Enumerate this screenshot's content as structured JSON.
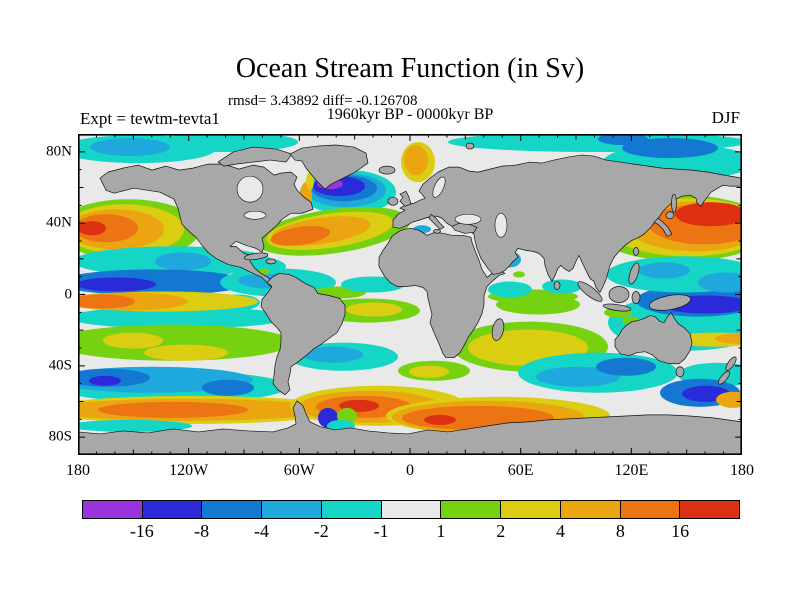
{
  "title": "Ocean Stream Function (in Sv)",
  "stats_line": "rmsd= 3.43892 diff= -0.126708",
  "period_line": "1960kyr BP - 0000kyr BP",
  "experiment_label": "Expt = tewtm-tevta1",
  "season_label": "DJF",
  "colors": {
    "land": "#a8a8a8",
    "ocean_neutral": "#e9e9e9",
    "coastline": "#111111",
    "frame": "#000000",
    "background": "#ffffff"
  },
  "axes": {
    "lat_ticks": [
      {
        "label": "80N",
        "deg": 80
      },
      {
        "label": "40N",
        "deg": 40
      },
      {
        "label": "0",
        "deg": 0
      },
      {
        "label": "40S",
        "deg": -40
      },
      {
        "label": "80S",
        "deg": -80
      }
    ],
    "lon_ticks": [
      {
        "label": "180",
        "deg": -180
      },
      {
        "label": "120W",
        "deg": -120
      },
      {
        "label": "60W",
        "deg": -60
      },
      {
        "label": "0",
        "deg": 0
      },
      {
        "label": "60E",
        "deg": 60
      },
      {
        "label": "120E",
        "deg": 120
      },
      {
        "label": "180",
        "deg": 180
      }
    ]
  },
  "colorbar": {
    "boundary_labels": [
      "-16",
      "-8",
      "-4",
      "-2",
      "-1",
      "1",
      "2",
      "4",
      "8",
      "16"
    ],
    "segment_colors": [
      "#9933dd",
      "#2a2ad9",
      "#1478d2",
      "#1fa8dc",
      "#15d6c6",
      "#e9e9e9",
      "#76d211",
      "#dbcd12",
      "#eaa511",
      "#ec7412",
      "#dd2f11"
    ]
  },
  "chart_data": {
    "type": "heatmap",
    "title": "Ocean Stream Function (in Sv)",
    "subtitle": "rmsd= 3.43892 diff= -0.126708",
    "annotation": "1960kyr BP - 0000kyr BP",
    "experiment": "tewtm-tevta1",
    "season": "DJF",
    "units": "Sv",
    "rmsd": 3.43892,
    "diff": -0.126708,
    "projection": "equirectangular world map, filled contours of stream-function difference",
    "xlim": [
      -180,
      180
    ],
    "ylim": [
      -90,
      90
    ],
    "x_tick_labels": [
      "180",
      "120W",
      "60W",
      "0",
      "60E",
      "120E",
      "180"
    ],
    "y_tick_labels": [
      "80N",
      "40N",
      "0",
      "40S",
      "80S"
    ],
    "contour_levels": [
      -16,
      -8,
      -4,
      -2,
      -1,
      1,
      2,
      4,
      8,
      16
    ],
    "level_colors": [
      "#9933dd",
      "#2a2ad9",
      "#1478d2",
      "#1fa8dc",
      "#15d6c6",
      "#e9e9e9",
      "#76d211",
      "#dbcd12",
      "#eaa511",
      "#ec7412",
      "#dd2f11"
    ],
    "legend_position": "bottom horizontal colorbar",
    "grid": false,
    "features": [
      {
        "region": "North Pacific Kuroshio extension east of Japan",
        "lat": "30N-45N",
        "lon": "140E-150W",
        "value_sv": "+8 to >+16"
      },
      {
        "region": "Subpolar North Atlantic south of Greenland",
        "lat": "50N-62N",
        "lon": "55W-25W",
        "value_sv": "-8 to <-16 (purple core)"
      },
      {
        "region": "Gulf Stream / North Atlantic drift",
        "lat": "35N-48N",
        "lon": "70W-20W",
        "value_sv": "+2 to +16"
      },
      {
        "region": "Norwegian Sea",
        "lat": "62N-72N",
        "lon": "0-15E",
        "value_sv": "+4 to +8"
      },
      {
        "region": "Arctic marginal seas",
        "lat": "70N-85N",
        "value_sv": "-1 to -8"
      },
      {
        "region": "Equatorial Pacific band north of equator",
        "lat": "0-8N",
        "value_sv": "-4 to -16"
      },
      {
        "region": "South-equatorial Pacific counter band",
        "lat": "2S-10S",
        "value_sv": "+4 to +16"
      },
      {
        "region": "Tropical N Pacific cyan band",
        "lat": "10N-25N",
        "value_sv": "-1 to -4"
      },
      {
        "region": "Southern mid-latitude green/yellow bands",
        "lat": "20S-40S",
        "value_sv": "+1 to +4"
      },
      {
        "region": "South Pacific / Tasman blue band",
        "lat": "45S-55S",
        "value_sv": "-4 to -16"
      },
      {
        "region": "Antarctic Circumpolar Current ring",
        "lat": "55S-65S",
        "value_sv": "+8 to >+16 (red cores in Atlantic/Indian sectors)"
      },
      {
        "region": "Coral Sea / NE of New Guinea",
        "lat": "5S-15S",
        "lon": "150E-180",
        "value_sv": "-8 to -16"
      }
    ]
  }
}
